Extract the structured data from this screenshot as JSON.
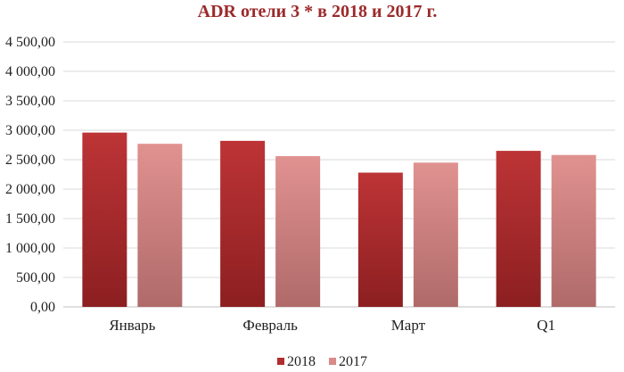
{
  "chart_data": {
    "type": "bar",
    "title": "ADR отели 3 * в 2018 и 2017 г.",
    "categories": [
      "Январь",
      "Февраль",
      "Март",
      "Q1"
    ],
    "series": [
      {
        "name": "2018",
        "values": [
          2960,
          2820,
          2280,
          2650
        ],
        "color": "#b22d2f"
      },
      {
        "name": "2017",
        "values": [
          2770,
          2560,
          2450,
          2580
        ],
        "color": "#d98a89"
      }
    ],
    "yticks": [
      "0,00",
      "500,00",
      "1 000,00",
      "1 500,00",
      "2 000,00",
      "2 500,00",
      "3 000,00",
      "3 500,00",
      "4 000,00",
      "4 500,00"
    ],
    "ylim": [
      0,
      4500
    ],
    "grid": true,
    "legend": "bottom"
  }
}
